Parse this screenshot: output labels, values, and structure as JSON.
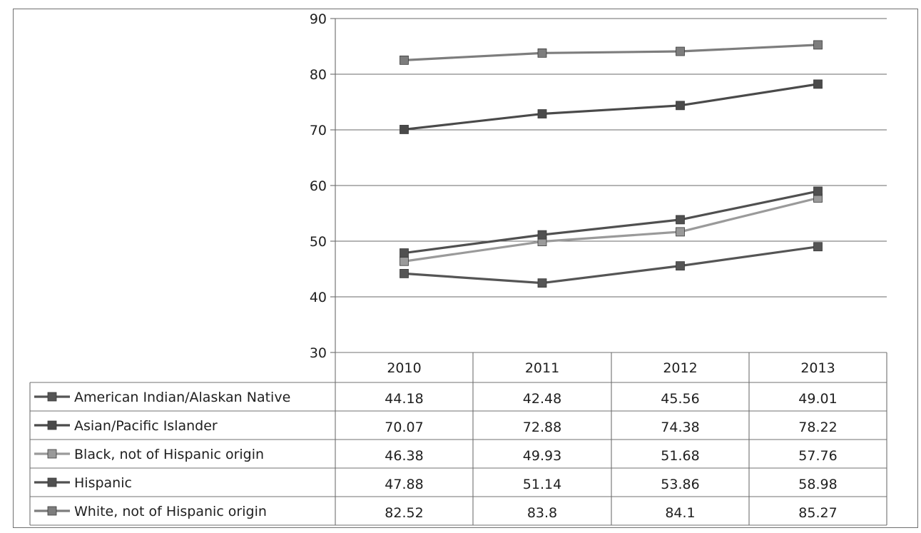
{
  "chart_data": {
    "type": "line",
    "title": "",
    "xlabel": "",
    "ylabel": "",
    "x": [
      "2010",
      "2011",
      "2012",
      "2013"
    ],
    "ylim": [
      30,
      90
    ],
    "yticks": [
      30,
      40,
      50,
      60,
      70,
      80,
      90
    ],
    "grid": true,
    "legend_placement": "data-table-left",
    "series": [
      {
        "name": "American Indian/Alaskan Native",
        "values": [
          44.18,
          42.48,
          45.56,
          49.01
        ],
        "labels": [
          "44.18",
          "42.48",
          "45.56",
          "49.01"
        ],
        "color": "#555555"
      },
      {
        "name": "Asian/Pacific Islander",
        "values": [
          70.07,
          72.88,
          74.38,
          78.22
        ],
        "labels": [
          "70.07",
          "72.88",
          "74.38",
          "78.22"
        ],
        "color": "#4a4a4a"
      },
      {
        "name": "Black, not of Hispanic origin",
        "values": [
          46.38,
          49.93,
          51.68,
          57.76
        ],
        "labels": [
          "46.38",
          "49.93",
          "51.68",
          "57.76"
        ],
        "color": "#9a9a9a"
      },
      {
        "name": "Hispanic",
        "values": [
          47.88,
          51.14,
          53.86,
          58.98
        ],
        "labels": [
          "47.88",
          "51.14",
          "53.86",
          "58.98"
        ],
        "color": "#505050"
      },
      {
        "name": "White, not of Hispanic origin",
        "values": [
          82.52,
          83.8,
          84.1,
          85.27
        ],
        "labels": [
          "82.52",
          "83.8",
          "84.1",
          "85.27"
        ],
        "color": "#7d7d7d"
      }
    ]
  }
}
